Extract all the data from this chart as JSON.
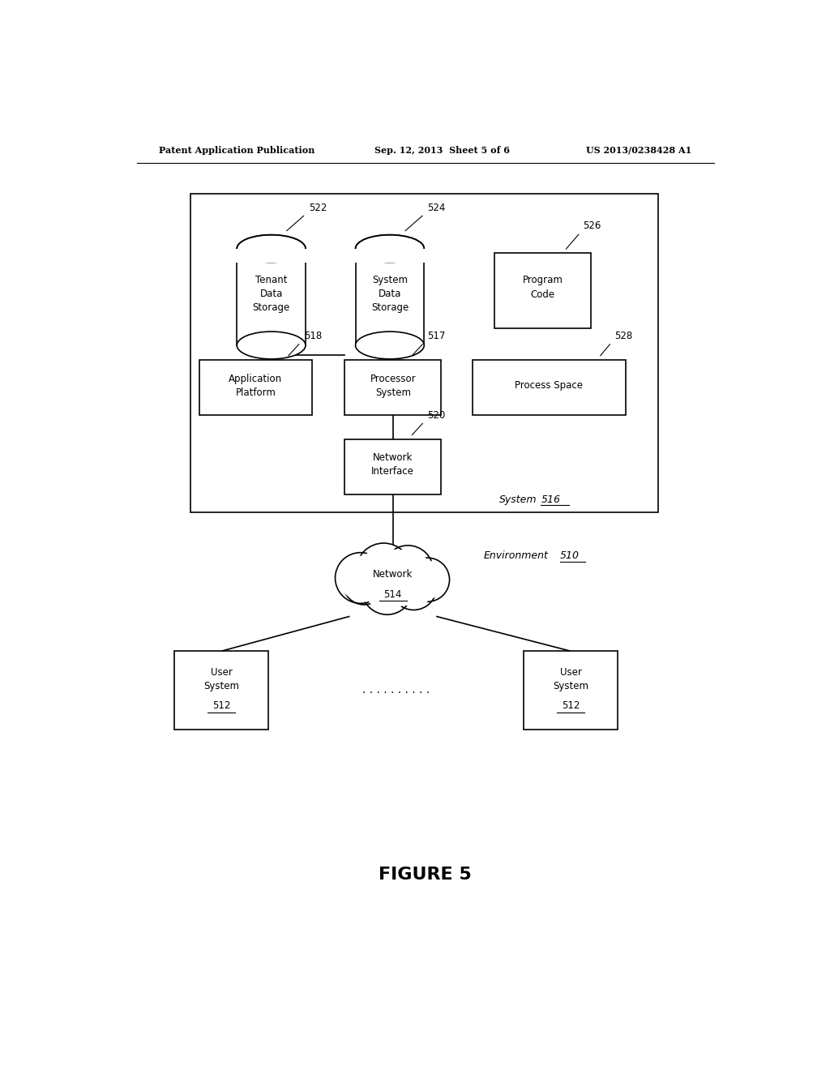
{
  "bg_color": "#ffffff",
  "header_text": "Patent Application Publication",
  "header_date": "Sep. 12, 2013  Sheet 5 of 6",
  "header_patent": "US 2013/0238428 A1",
  "figure_label": "FIGURE 5",
  "environment_label": "Environment",
  "environment_ref": "510",
  "system_label": "System",
  "system_ref": "516"
}
